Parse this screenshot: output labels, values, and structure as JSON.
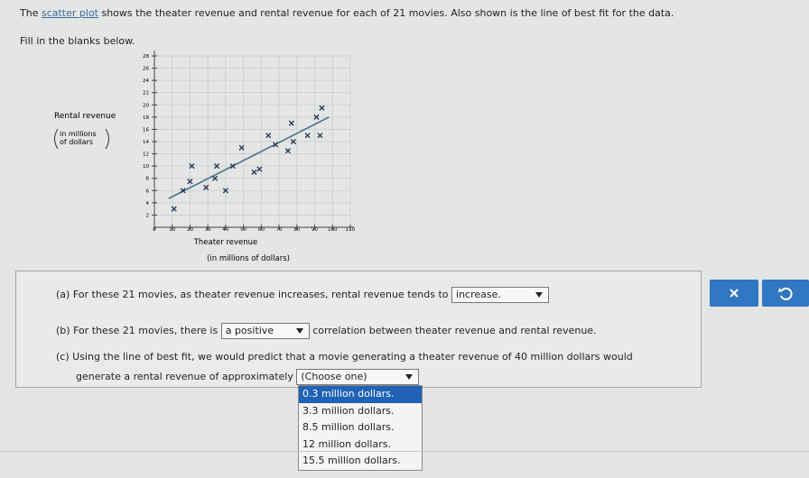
{
  "header": {
    "prompt_start": "The",
    "prompt_link": "scatter plot",
    "prompt_end": "shows the theater revenue and rental revenue for each of 21 movies. Also shown is the line of best fit for the data.",
    "instruction": "Fill in the blanks below."
  },
  "chart_data": {
    "type": "scatter",
    "y_label": "Rental revenue",
    "y_label_sub": [
      "in millions",
      "of dollars"
    ],
    "x_label": "Theater revenue",
    "x_label_sub": "(in millions of dollars)",
    "x": [
      11,
      16,
      20,
      21,
      29,
      34,
      35,
      40,
      44,
      49,
      56,
      59,
      64,
      68,
      75,
      77,
      78,
      86,
      91,
      93,
      94
    ],
    "values": [
      3,
      6,
      7.5,
      10,
      6.5,
      8,
      10,
      6,
      10,
      13,
      9,
      9.5,
      15,
      13.5,
      12.5,
      17,
      14,
      15,
      18,
      15,
      19.5
    ],
    "color": "#2a3a5a",
    "fit_line": {
      "x": [
        8,
        98
      ],
      "values": [
        4.7,
        18
      ],
      "color": "#4a7a8c"
    },
    "xlim": [
      0,
      110
    ],
    "xticks": [
      0,
      10,
      20,
      30,
      40,
      50,
      60,
      70,
      80,
      90,
      100,
      110
    ],
    "ylim": [
      0,
      28
    ],
    "yticks": [
      2,
      4,
      6,
      8,
      10,
      12,
      14,
      16,
      18,
      20,
      22,
      24,
      26,
      28
    ],
    "grid": true
  },
  "questions": [
    {
      "label": "(a)",
      "before": "For these 21 movies, as theater revenue increases, rental revenue tends to",
      "selected": "increase.",
      "after": ""
    },
    {
      "label": "(b)",
      "before": "For these 21 movies, there is",
      "selected": "a positive",
      "after": "correlation between theater revenue and rental revenue."
    },
    {
      "label": "(c)",
      "before": "Using the line of best fit, we would predict that a movie generating a theater revenue of 40 million dollars would",
      "before2": "generate a rental revenue of approximately",
      "selected": "(Choose one)",
      "after": ""
    }
  ],
  "dropdown_options": [
    "0.3 million dollars.",
    "3.3 million dollars.",
    "8.5 million dollars.",
    "12 million dollars.",
    "15.5 million dollars."
  ]
}
